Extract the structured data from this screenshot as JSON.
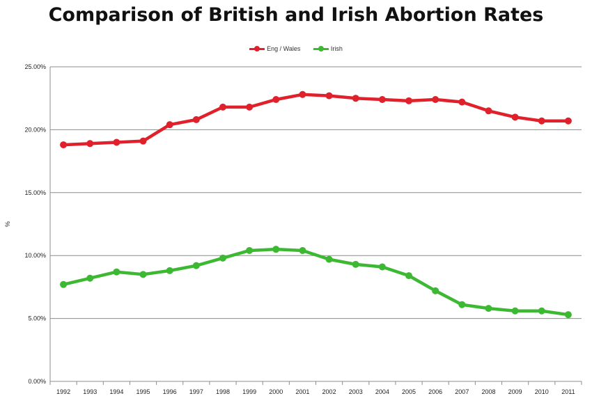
{
  "chart_data": {
    "type": "line",
    "title": "Comparison of British and Irish Abortion Rates",
    "ylabel": "%",
    "xlabel": "",
    "ylim": [
      0,
      25
    ],
    "yticks": [
      "0.00%",
      "5.00%",
      "10.00%",
      "15.00%",
      "20.00%",
      "25.00%"
    ],
    "legend_position": "top",
    "grid": "horizontal",
    "categories": [
      "1992",
      "1993",
      "1994",
      "1995",
      "1996",
      "1997",
      "1998",
      "1999",
      "2000",
      "2001",
      "2002",
      "2003",
      "2004",
      "2005",
      "2006",
      "2007",
      "2008",
      "2009",
      "2010",
      "2011"
    ],
    "series": [
      {
        "name": "Eng / Wales",
        "color": "#e0202a",
        "values": [
          18.8,
          18.9,
          19.0,
          19.1,
          20.4,
          20.8,
          21.8,
          21.8,
          22.4,
          22.8,
          22.7,
          22.5,
          22.4,
          22.3,
          22.4,
          22.2,
          21.5,
          21.0,
          20.7,
          20.7
        ]
      },
      {
        "name": "Irish",
        "color": "#3cb832",
        "values": [
          7.7,
          8.2,
          8.7,
          8.5,
          8.8,
          9.2,
          9.8,
          10.4,
          10.5,
          10.4,
          9.7,
          9.3,
          9.1,
          8.4,
          7.2,
          6.1,
          5.8,
          5.6,
          5.6,
          5.3
        ]
      }
    ]
  }
}
